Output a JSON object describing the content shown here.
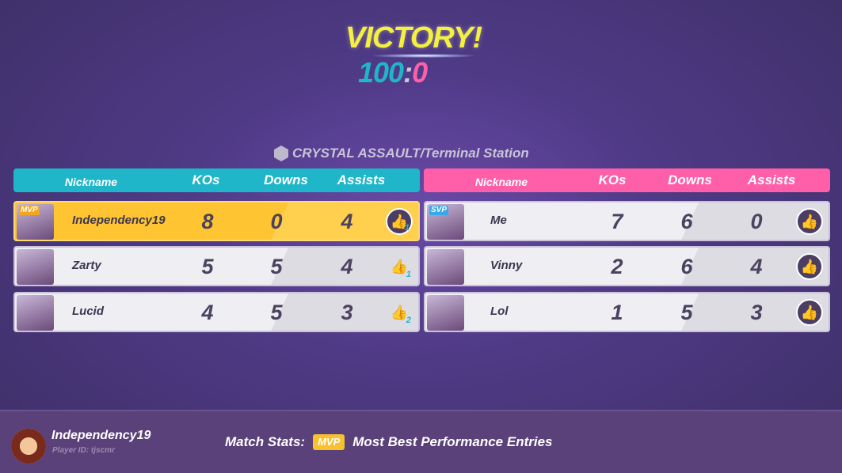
{
  "result": {
    "title": "VICTORY!",
    "score_blue": "100",
    "score_sep": ":",
    "score_red": "0"
  },
  "map": {
    "icon": "crystal-cube-icon",
    "label": "CRYSTAL ASSAULT/Terminal Station"
  },
  "colors": {
    "blue_team": "#1fb6c9",
    "red_team": "#ff5ea8",
    "mvp": "#ffc431",
    "victory": "#f4f040"
  },
  "columns": {
    "nickname": "Nickname",
    "kos": "KOs",
    "downs": "Downs",
    "assists": "Assists"
  },
  "blue_team": [
    {
      "badge": "MVP",
      "nickname": "Independency19",
      "kos": "8",
      "downs": "0",
      "assists": "4",
      "likes": "1",
      "liked": true,
      "highlight": true
    },
    {
      "badge": "",
      "nickname": "Zarty",
      "kos": "5",
      "downs": "5",
      "assists": "4",
      "likes": "1",
      "liked": false
    },
    {
      "badge": "",
      "nickname": "Lucid",
      "kos": "4",
      "downs": "5",
      "assists": "3",
      "likes": "2",
      "liked": false
    }
  ],
  "red_team": [
    {
      "badge": "SVP",
      "nickname": "Me",
      "kos": "7",
      "downs": "6",
      "assists": "0",
      "likes": "",
      "liked": true
    },
    {
      "badge": "",
      "nickname": "Vinny",
      "kos": "2",
      "downs": "6",
      "assists": "4",
      "likes": "",
      "liked": true
    },
    {
      "badge": "",
      "nickname": "Lol",
      "kos": "1",
      "downs": "5",
      "assists": "3",
      "likes": "",
      "liked": true
    }
  ],
  "player": {
    "name": "Independency19",
    "id": "Player ID: tjscmr"
  },
  "footer": {
    "label": "Match Stats:",
    "badge": "MVP",
    "text": "Most Best Performance Entries"
  }
}
